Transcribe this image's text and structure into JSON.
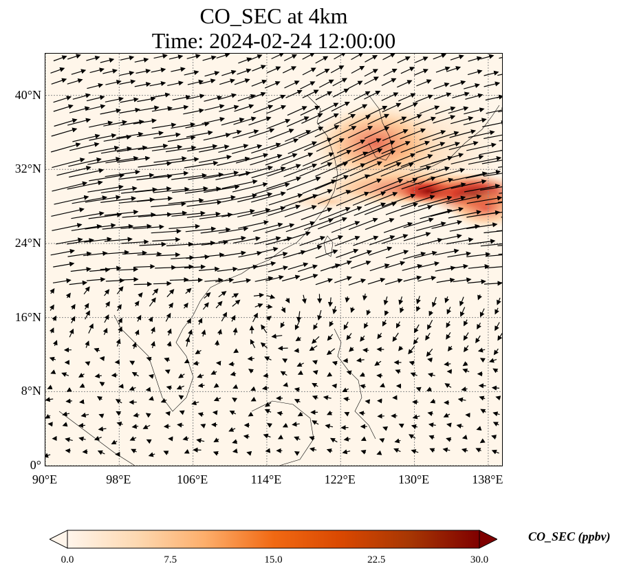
{
  "title": {
    "line1": "CO_SEC at 4km",
    "line2": "Time: 2024-02-24 12:00:00"
  },
  "map": {
    "lon_range": [
      90,
      139.5
    ],
    "lat_range": [
      0,
      44.5
    ],
    "x_ticks": [
      "90°E",
      "98°E",
      "106°E",
      "114°E",
      "122°E",
      "130°E",
      "138°E"
    ],
    "y_ticks": [
      "0°",
      "8°N",
      "16°N",
      "24°N",
      "32°N",
      "40°N"
    ],
    "x_tick_values": [
      90,
      98,
      106,
      114,
      122,
      130,
      138
    ],
    "y_tick_values": [
      0,
      8,
      16,
      24,
      32,
      40
    ],
    "gridlines": true,
    "field_name": "CO_SEC",
    "units": "ppbv",
    "overlay": "wind vectors"
  },
  "colorbar": {
    "label": "CO_SEC (ppbv)",
    "ticks": [
      "0.0",
      "7.5",
      "15.0",
      "22.5",
      "30.0"
    ],
    "range": [
      0,
      30
    ],
    "colormap": [
      "#fff5eb",
      "#fdd9b2",
      "#fdae6b",
      "#f16913",
      "#d94801",
      "#a63603",
      "#7f0000"
    ],
    "extend": "both"
  }
}
